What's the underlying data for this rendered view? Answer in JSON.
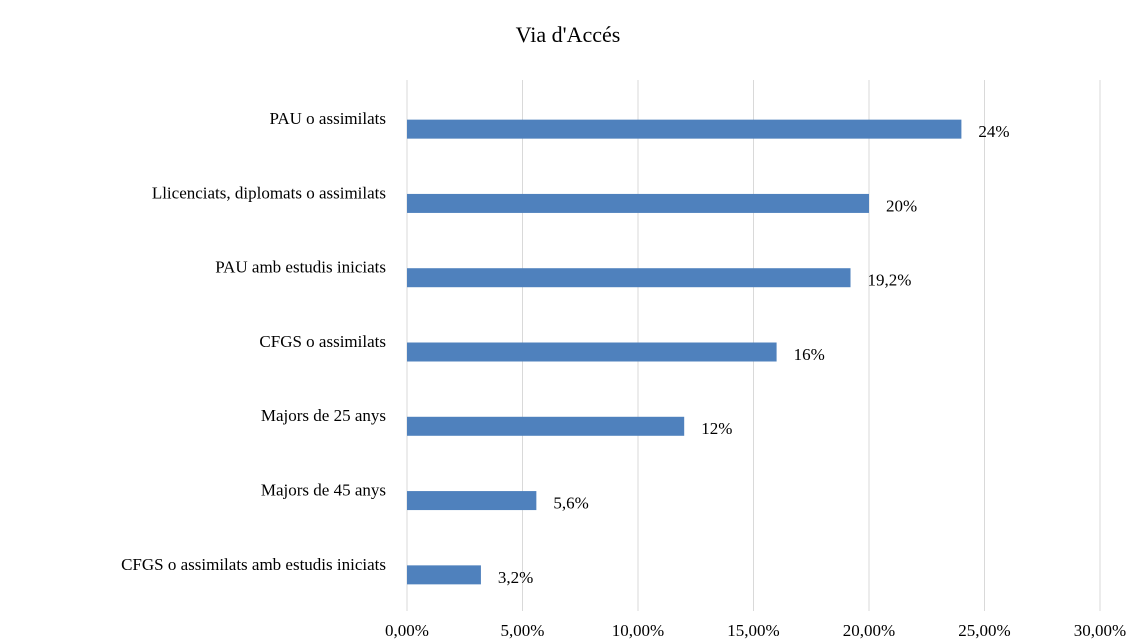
{
  "chart_data": {
    "type": "bar",
    "orientation": "horizontal",
    "title": "Via d'Accés",
    "categories": [
      "PAU o assimilats",
      "Llicenciats, diplomats o assimilats",
      "PAU amb estudis iniciats",
      "CFGS o assimilats",
      "Majors de 25 anys",
      "Majors de 45 anys",
      "CFGS o assimilats amb estudis iniciats"
    ],
    "values": [
      24,
      20,
      19.2,
      16,
      12,
      5.6,
      3.2
    ],
    "value_labels": [
      "24%",
      "20%",
      "19,2%",
      "16%",
      "12%",
      "5,6%",
      "3,2%"
    ],
    "color": "#4f81bd",
    "xlim": [
      0,
      30
    ],
    "xticks": [
      {
        "value": 0,
        "label": "0,00%"
      },
      {
        "value": 5,
        "label": "5,00%"
      },
      {
        "value": 10,
        "label": "10,00%"
      },
      {
        "value": 15,
        "label": "15,00%"
      },
      {
        "value": 20,
        "label": "20,00%"
      },
      {
        "value": 25,
        "label": "25,00%"
      },
      {
        "value": 30,
        "label": "30,00%"
      }
    ],
    "grid": true
  }
}
